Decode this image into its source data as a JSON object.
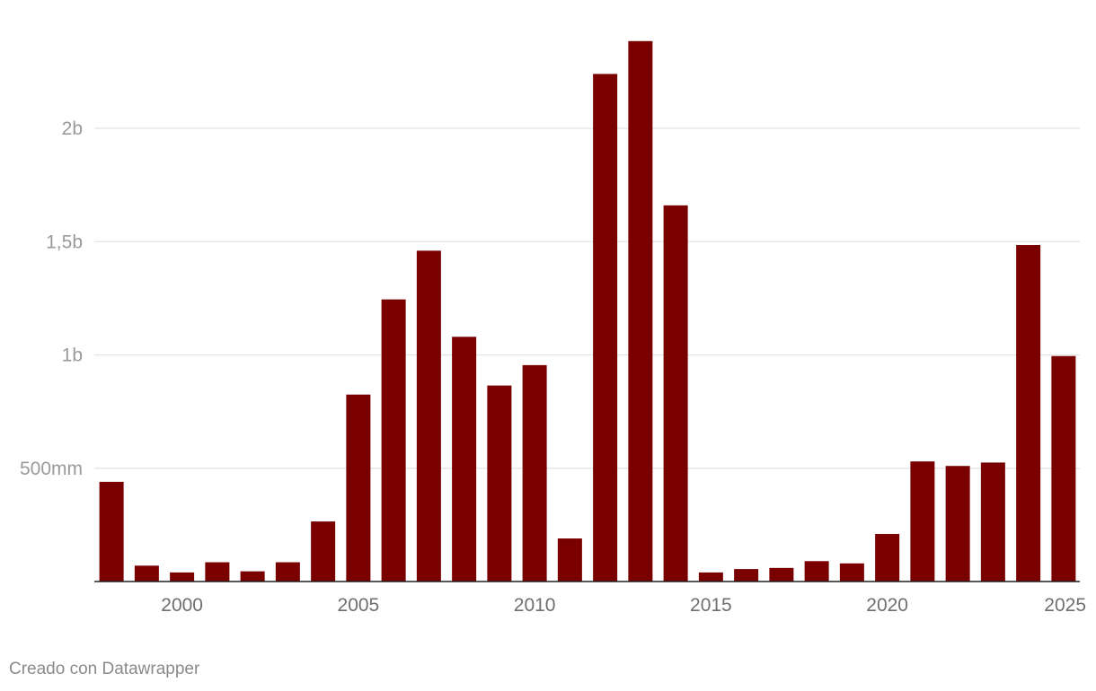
{
  "credit": "Creado con Datawrapper",
  "colors": {
    "bar": "#7a0000",
    "grid": "#e2e2e2",
    "baseline": "#222222"
  },
  "chart_data": {
    "type": "bar",
    "title": "",
    "xlabel": "",
    "ylabel": "",
    "categories": [
      1998,
      1999,
      2000,
      2001,
      2002,
      2003,
      2004,
      2005,
      2006,
      2007,
      2008,
      2009,
      2010,
      2011,
      2012,
      2013,
      2014,
      2015,
      2016,
      2017,
      2018,
      2019,
      2020,
      2021,
      2022,
      2023,
      2024,
      2025
    ],
    "values": [
      440,
      70,
      40,
      85,
      45,
      85,
      265,
      825,
      1245,
      1460,
      1080,
      865,
      955,
      190,
      2240,
      2385,
      1660,
      40,
      55,
      60,
      90,
      80,
      210,
      530,
      510,
      525,
      1485,
      995
    ],
    "value_unit": "millions",
    "ylim": [
      0,
      2400
    ],
    "yticks": [
      {
        "value": 500,
        "label": "500mm"
      },
      {
        "value": 1000,
        "label": "1b"
      },
      {
        "value": 1500,
        "label": "1,5b"
      },
      {
        "value": 2000,
        "label": "2b"
      }
    ],
    "xticks": [
      {
        "value": 2000,
        "label": "2000"
      },
      {
        "value": 2005,
        "label": "2005"
      },
      {
        "value": 2010,
        "label": "2010"
      },
      {
        "value": 2015,
        "label": "2015"
      },
      {
        "value": 2020,
        "label": "2020"
      },
      {
        "value": 2025,
        "label": "2025"
      }
    ],
    "grid": true,
    "legend": "none"
  }
}
